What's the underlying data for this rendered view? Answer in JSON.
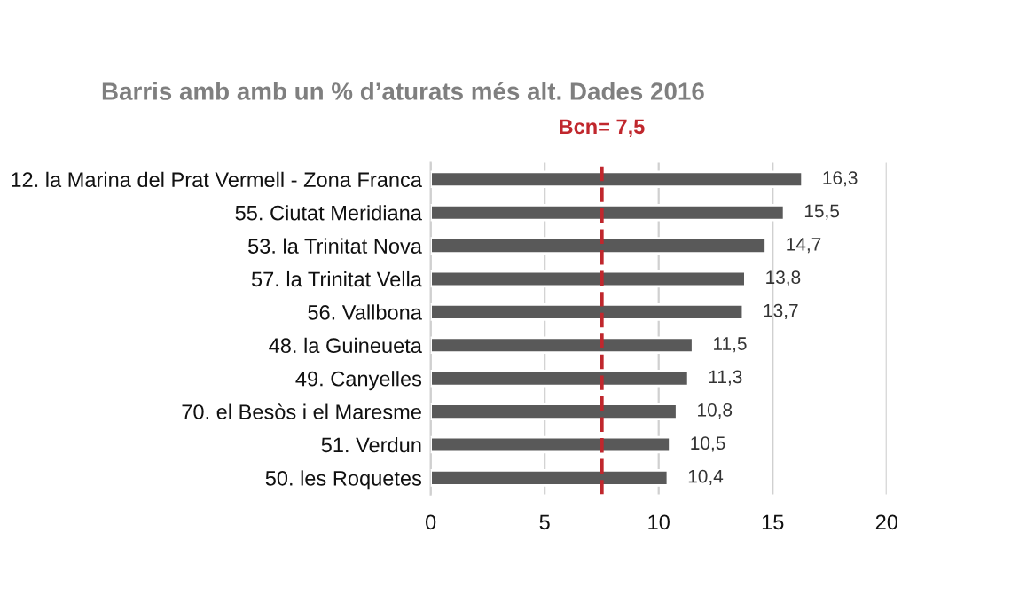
{
  "chart_data": {
    "type": "bar",
    "orientation": "horizontal",
    "title": "Barris amb amb un % d’aturats més alt. Dades 2016",
    "categories": [
      "12. la Marina del Prat Vermell - Zona Franca",
      "55. Ciutat Meridiana",
      "53. la Trinitat Nova",
      "57. la Trinitat Vella",
      "56. Vallbona",
      "48. la Guineueta",
      "49. Canyelles",
      "70. el Besòs i el Maresme",
      "51. Verdun",
      "50. les Roquetes"
    ],
    "values": [
      16.3,
      15.5,
      14.7,
      13.8,
      13.7,
      11.5,
      11.3,
      10.8,
      10.5,
      10.4
    ],
    "value_labels": [
      "16,3",
      "15,5",
      "14,7",
      "13,8",
      "13,7",
      "11,5",
      "11,3",
      "10,8",
      "10,5",
      "10,4"
    ],
    "color": "#595959",
    "xlim": [
      0,
      20
    ],
    "xticks": [
      0,
      5,
      10,
      15,
      20
    ],
    "grid": "x",
    "ref_lines": [
      {
        "axis": "x",
        "value": 7.5,
        "label": "Bcn= 7,5",
        "color": "#c0272d",
        "line_style": "dashed"
      }
    ]
  }
}
